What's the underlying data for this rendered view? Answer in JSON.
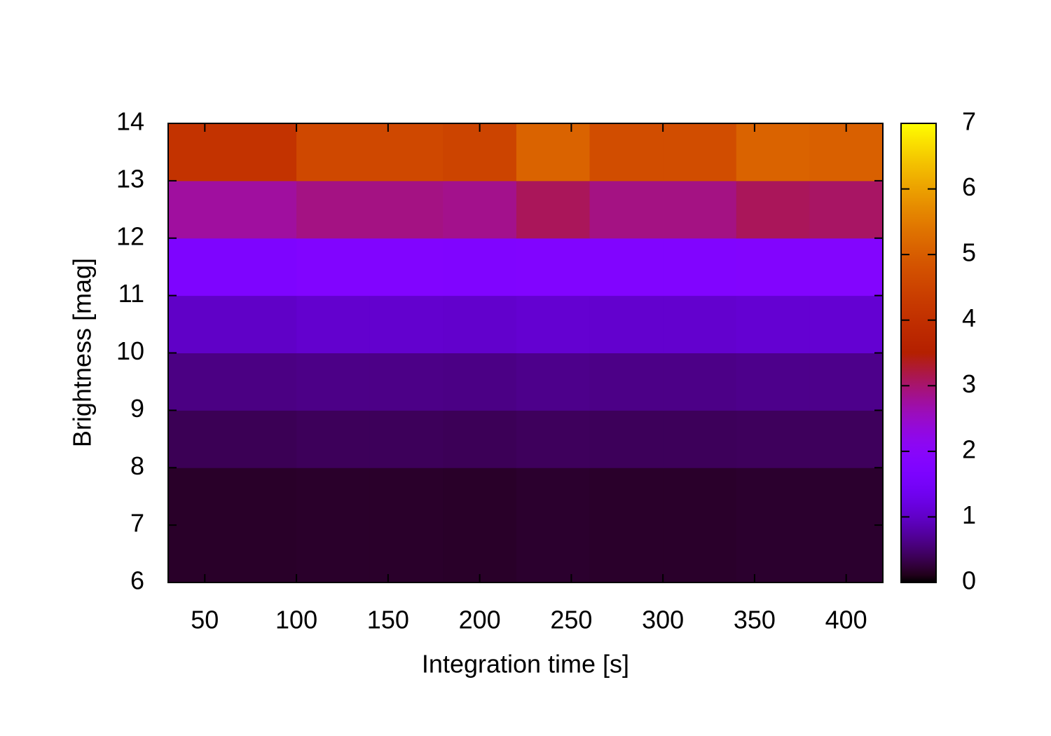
{
  "chart_data": {
    "type": "heatmap",
    "xlabel": "Integration time [s]",
    "ylabel": "Brightness [mag]",
    "xbins": [
      30,
      100,
      140,
      180,
      220,
      260,
      300,
      340,
      380,
      420
    ],
    "ybins": [
      6,
      8,
      9,
      10,
      11,
      12,
      13,
      14
    ],
    "z": [
      [
        0.18,
        0.19,
        0.19,
        0.18,
        0.2,
        0.19,
        0.19,
        0.2,
        0.2
      ],
      [
        0.38,
        0.4,
        0.4,
        0.39,
        0.41,
        0.4,
        0.4,
        0.41,
        0.41
      ],
      [
        0.6,
        0.62,
        0.62,
        0.61,
        0.64,
        0.62,
        0.62,
        0.64,
        0.64
      ],
      [
        1.0,
        1.05,
        1.05,
        1.03,
        1.07,
        1.05,
        1.05,
        1.08,
        1.08
      ],
      [
        1.72,
        1.78,
        1.78,
        1.76,
        1.8,
        1.78,
        1.78,
        1.82,
        1.84
      ],
      [
        2.75,
        2.9,
        2.9,
        2.85,
        3.1,
        2.9,
        2.9,
        3.1,
        3.05
      ],
      [
        4.1,
        4.6,
        4.6,
        4.5,
        5.1,
        4.7,
        4.7,
        5.1,
        5.05
      ]
    ],
    "xlim": [
      30,
      420
    ],
    "xticks": [
      50,
      100,
      150,
      200,
      250,
      300,
      350,
      400
    ],
    "ylim": [
      6,
      14
    ],
    "yticks": [
      6,
      7,
      8,
      9,
      10,
      11,
      12,
      13,
      14
    ],
    "clim": [
      0,
      7
    ],
    "cticks": [
      0,
      1,
      2,
      3,
      4,
      5,
      6,
      7
    ],
    "palette": "gnuplot"
  }
}
